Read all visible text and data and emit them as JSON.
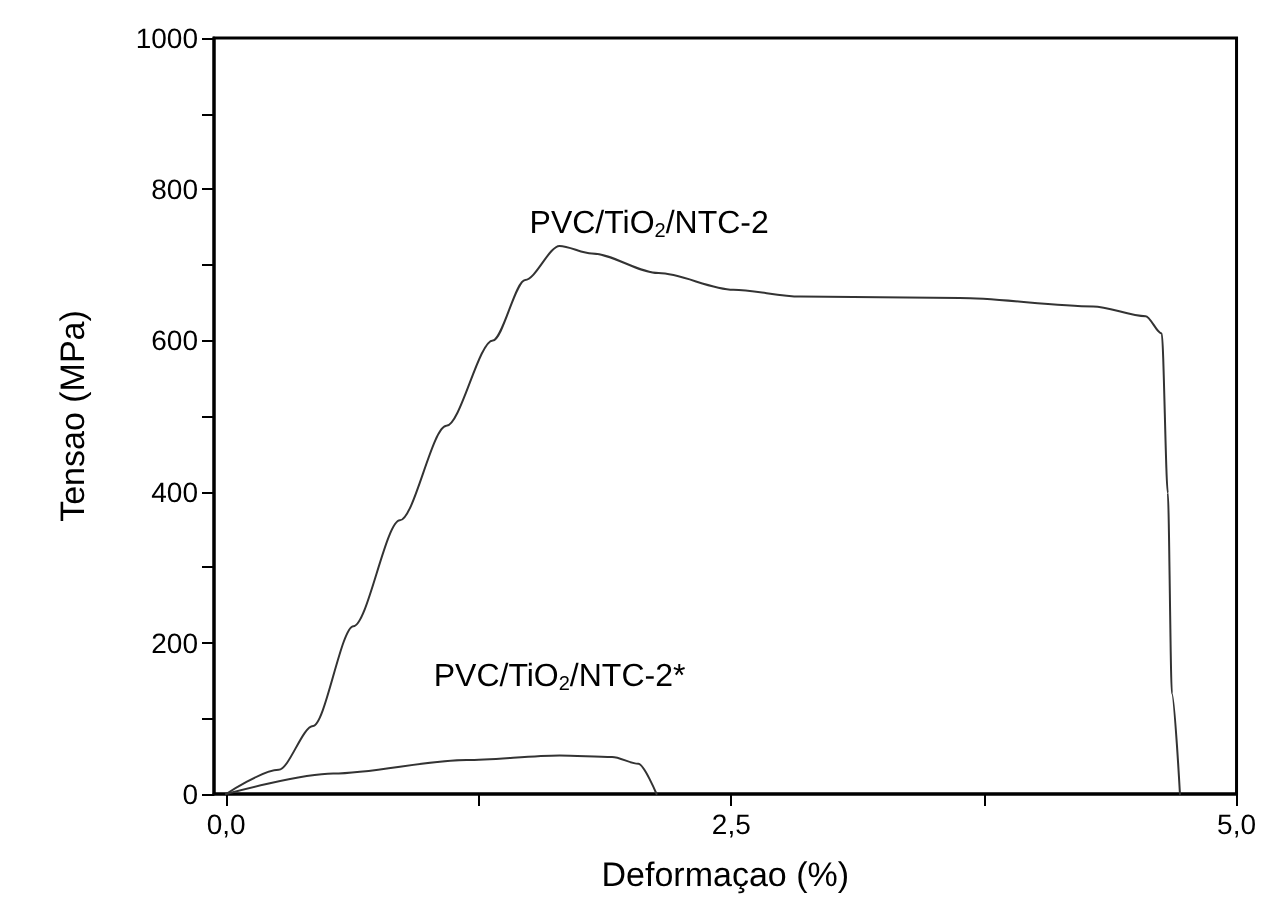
{
  "chart_data": {
    "type": "line",
    "xlabel": "Deformaçao (%)",
    "ylabel": "Tensao (MPa)",
    "xlim": [
      -0.06,
      5.0
    ],
    "ylim": [
      0,
      1000
    ],
    "xticks": [
      {
        "value": 0,
        "label": "0,0"
      },
      {
        "value": 1.25,
        "label": null
      },
      {
        "value": 2.5,
        "label": "2,5"
      },
      {
        "value": 3.75,
        "label": null
      },
      {
        "value": 5.0,
        "label": "5,0"
      }
    ],
    "yticks": [
      0,
      {
        "value": 100,
        "label": null
      },
      200,
      {
        "value": 300,
        "label": null
      },
      400,
      {
        "value": 500,
        "label": null
      },
      600,
      {
        "value": 700,
        "label": null
      },
      800,
      {
        "value": 900,
        "label": null
      },
      1000
    ],
    "grid": false,
    "marker": "none",
    "line_style": "solid",
    "series": [
      {
        "name": "PVC/TiO$_{2}$/NTC-2",
        "color": "#333333",
        "x": [
          0,
          0.26,
          0.43,
          0.63,
          0.86,
          1.09,
          1.32,
          1.48,
          1.65,
          1.81,
          2.14,
          2.51,
          2.84,
          3.63,
          4.29,
          4.55,
          4.63,
          4.66,
          4.68,
          4.72
        ],
        "values": [
          0,
          32,
          90,
          222,
          362,
          487,
          600,
          680,
          725,
          715,
          689,
          667,
          658,
          656,
          645,
          632,
          609,
          398,
          133,
          0
        ]
      },
      {
        "name": "PVC/TiO$_{2}$/NTC-2*",
        "color": "#333333",
        "x": [
          0,
          0.53,
          1.19,
          1.65,
          1.91,
          2.04,
          2.13
        ],
        "values": [
          0,
          27,
          45,
          51,
          49,
          40,
          0
        ]
      }
    ]
  }
}
